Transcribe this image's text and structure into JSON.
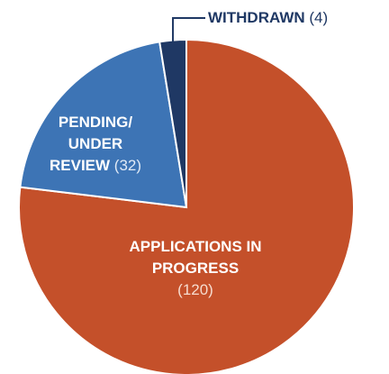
{
  "chart_data": {
    "type": "pie",
    "categories": [
      "APPLICATIONS IN PROGRESS",
      "PENDING/ UNDER REVIEW",
      "WITHDRAWN"
    ],
    "values": [
      120,
      32,
      4
    ],
    "value_labels": [
      "(120)",
      "(32)",
      "(4)"
    ],
    "colors": [
      "#c4502a",
      "#3d74b5",
      "#1f3864"
    ]
  }
}
